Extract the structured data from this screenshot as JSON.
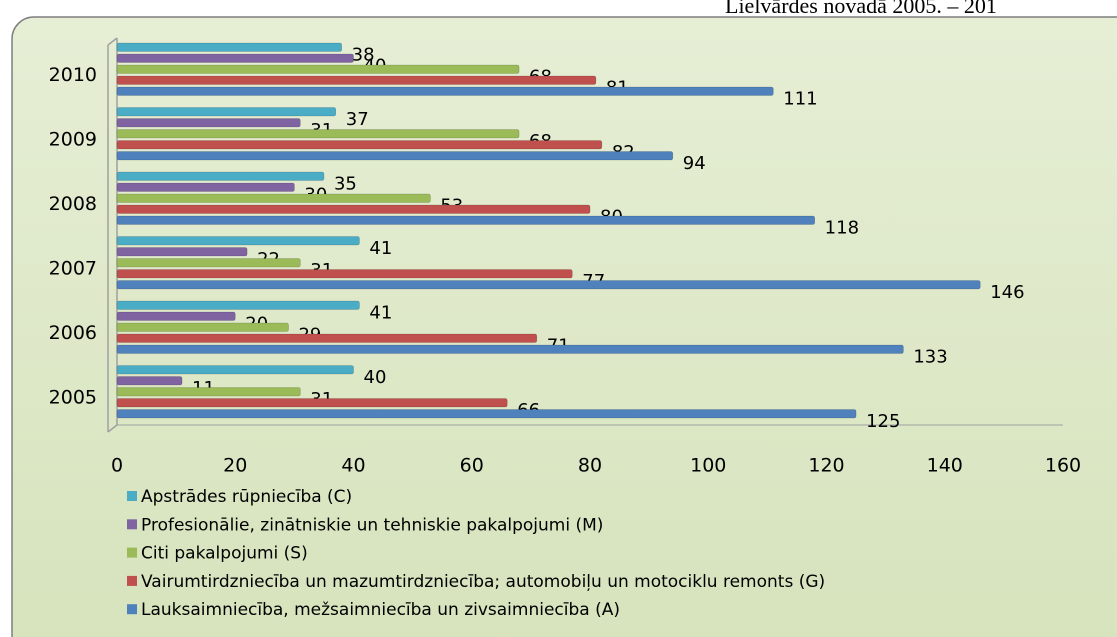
{
  "chart_data": {
    "type": "bar",
    "orientation": "horizontal",
    "title": "Lielvārdes novadā 2005. – 201",
    "categories": [
      "2005",
      "2006",
      "2007",
      "2008",
      "2009",
      "2010"
    ],
    "series": [
      {
        "name": "Apstrādes rūpniecība (C)",
        "color": "#4bacc6",
        "values": [
          40,
          41,
          41,
          35,
          37,
          38
        ]
      },
      {
        "name": "Profesionālie, zinātniskie un tehniskie pakalpojumi (M)",
        "color": "#8064a2",
        "values": [
          11,
          20,
          22,
          30,
          31,
          40
        ]
      },
      {
        "name": "Citi pakalpojumi (S)",
        "color": "#9bbb59",
        "values": [
          31,
          29,
          31,
          53,
          68,
          68
        ]
      },
      {
        "name": "Vairumtirdzniecība un mazumtirdzniecība; automobiļu un motociklu remonts (G)",
        "color": "#c0504d",
        "values": [
          66,
          71,
          77,
          80,
          82,
          81
        ]
      },
      {
        "name": "Lauksaimniecība, mežsaimniecība un zivsaimniecība (A)",
        "color": "#4f81bd",
        "values": [
          125,
          133,
          146,
          118,
          94,
          111
        ]
      }
    ],
    "xlim": [
      0,
      160
    ],
    "xticks": [
      0,
      20,
      40,
      60,
      80,
      100,
      120,
      140,
      160
    ],
    "legend": "bottom"
  }
}
